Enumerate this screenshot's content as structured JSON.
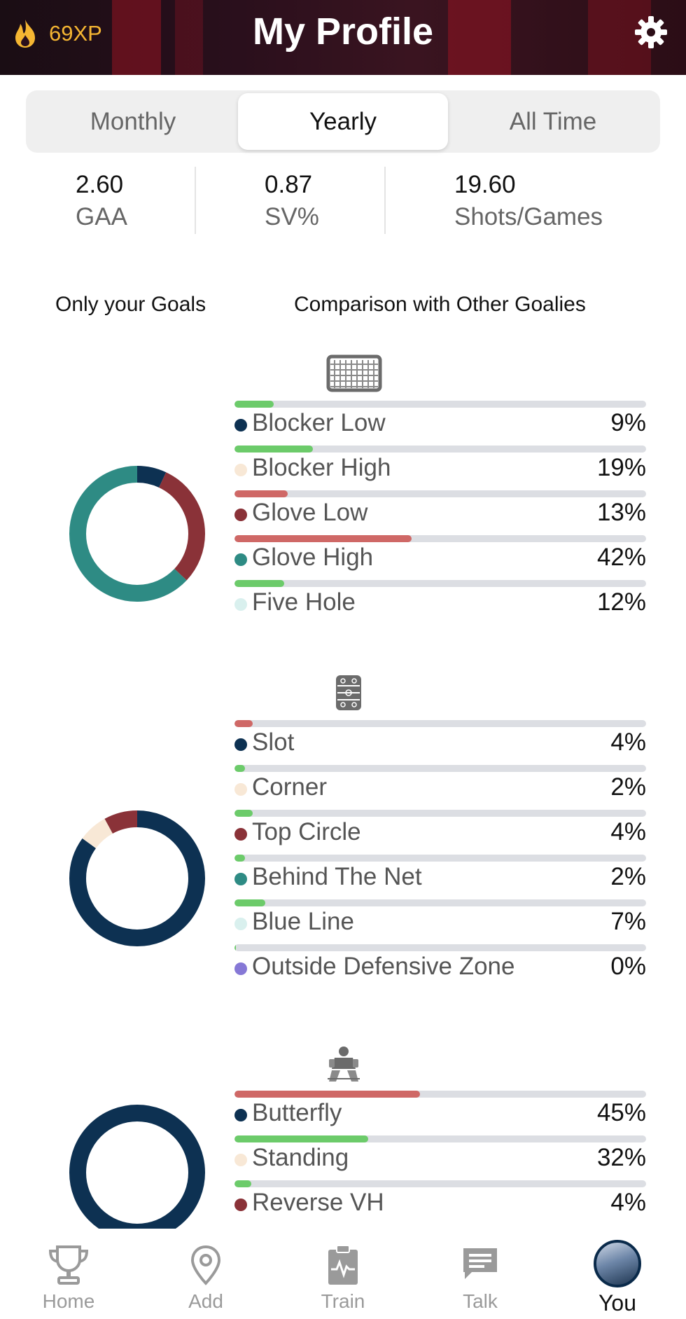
{
  "header": {
    "xp": "69XP",
    "title": "My Profile"
  },
  "tabs": [
    {
      "label": "Monthly",
      "active": false
    },
    {
      "label": "Yearly",
      "active": true
    },
    {
      "label": "All Time",
      "active": false
    }
  ],
  "stats": [
    {
      "value": "2.60",
      "label": "GAA"
    },
    {
      "value": "0.87",
      "label": "SV%"
    },
    {
      "value": "19.60",
      "label": "Shots/Games"
    }
  ],
  "columns": {
    "left": "Only your Goals",
    "right": "Comparison with Other Goalies"
  },
  "colors": {
    "navy": "#0d3152",
    "cream": "#f8e8d6",
    "maroon": "#8a3238",
    "teal": "#2e8b84",
    "mint": "#d9f0ee",
    "lavender": "#8678d6",
    "green": "#6ccb6a",
    "red": "#cf6866",
    "track": "#dcdee3"
  },
  "sections": [
    {
      "icon": "hockey-net-icon",
      "donut": [
        {
          "color": "#0d3152",
          "fraction": 0.07
        },
        {
          "color": "#8a3238",
          "fraction": 0.3
        },
        {
          "color": "#2e8b84",
          "fraction": 0.63
        }
      ],
      "items": [
        {
          "label": "Blocker Low",
          "pct": "9%",
          "value": 9,
          "bar": 0.095,
          "bar_color": "#6ccb6a",
          "dot": "#0d3152"
        },
        {
          "label": "Blocker High",
          "pct": "19%",
          "value": 19,
          "bar": 0.19,
          "bar_color": "#6ccb6a",
          "dot": "#f8e8d6"
        },
        {
          "label": "Glove Low",
          "pct": "13%",
          "value": 13,
          "bar": 0.13,
          "bar_color": "#cf6866",
          "dot": "#8a3238"
        },
        {
          "label": "Glove High",
          "pct": "42%",
          "value": 42,
          "bar": 0.43,
          "bar_color": "#cf6866",
          "dot": "#2e8b84"
        },
        {
          "label": "Five Hole",
          "pct": "12%",
          "value": 12,
          "bar": 0.12,
          "bar_color": "#6ccb6a",
          "dot": "#d9f0ee"
        }
      ]
    },
    {
      "icon": "rink-icon",
      "donut": [
        {
          "color": "#0d3152",
          "fraction": 0.85
        },
        {
          "color": "#f8e8d6",
          "fraction": 0.07
        },
        {
          "color": "#8a3238",
          "fraction": 0.08
        }
      ],
      "items": [
        {
          "label": "Slot",
          "pct": "4%",
          "value": 4,
          "bar": 0.045,
          "bar_color": "#cf6866",
          "dot": "#0d3152"
        },
        {
          "label": "Corner",
          "pct": "2%",
          "value": 2,
          "bar": 0.025,
          "bar_color": "#6ccb6a",
          "dot": "#f8e8d6"
        },
        {
          "label": "Top Circle",
          "pct": "4%",
          "value": 4,
          "bar": 0.045,
          "bar_color": "#6ccb6a",
          "dot": "#8a3238"
        },
        {
          "label": "Behind The Net",
          "pct": "2%",
          "value": 2,
          "bar": 0.025,
          "bar_color": "#6ccb6a",
          "dot": "#2e8b84"
        },
        {
          "label": "Blue Line",
          "pct": "7%",
          "value": 7,
          "bar": 0.075,
          "bar_color": "#6ccb6a",
          "dot": "#d9f0ee"
        },
        {
          "label": "Outside Defensive Zone",
          "pct": "0%",
          "value": 0,
          "bar": 0.004,
          "bar_color": "#6ccb6a",
          "dot": "#8678d6"
        }
      ]
    },
    {
      "icon": "goalie-icon",
      "donut": [
        {
          "color": "#0d3152",
          "fraction": 1.0
        }
      ],
      "items": [
        {
          "label": "Butterfly",
          "pct": "45%",
          "value": 45,
          "bar": 0.45,
          "bar_color": "#cf6866",
          "dot": "#0d3152"
        },
        {
          "label": "Standing",
          "pct": "32%",
          "value": 32,
          "bar": 0.325,
          "bar_color": "#6ccb6a",
          "dot": "#f8e8d6"
        },
        {
          "label": "Reverse VH",
          "pct": "4%",
          "value": 4,
          "bar": 0.04,
          "bar_color": "#6ccb6a",
          "dot": "#8a3238"
        }
      ]
    }
  ],
  "nav": [
    {
      "label": "Home",
      "icon": "trophy-icon",
      "active": false
    },
    {
      "label": "Add",
      "icon": "location-pin-icon",
      "active": false
    },
    {
      "label": "Train",
      "icon": "clipboard-icon",
      "active": false
    },
    {
      "label": "Talk",
      "icon": "chat-icon",
      "active": false
    },
    {
      "label": "You",
      "icon": "avatar-icon",
      "active": true
    }
  ]
}
